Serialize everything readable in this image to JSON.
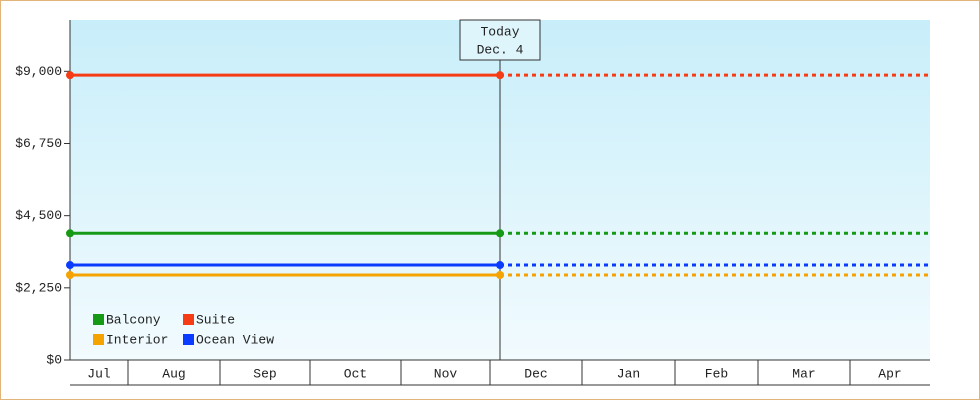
{
  "chart_data": {
    "type": "line",
    "categories": [
      "Jul",
      "Aug",
      "Sep",
      "Oct",
      "Nov",
      "Dec",
      "Jan",
      "Feb",
      "Mar",
      "Apr"
    ],
    "ylim": [
      0,
      10600
    ],
    "yticks": [
      {
        "value": 0,
        "label": "$0"
      },
      {
        "value": 2250,
        "label": "$2,250"
      },
      {
        "value": 4500,
        "label": "$4,500"
      },
      {
        "value": 6750,
        "label": "$6,750"
      },
      {
        "value": 9000,
        "label": "$9,000"
      }
    ],
    "annotation": {
      "title": "Today",
      "date": "Dec. 4"
    },
    "series": [
      {
        "name": "Balcony",
        "color": "#169a16",
        "value": 3950
      },
      {
        "name": "Suite",
        "color": "#f53c14",
        "value": 8880
      },
      {
        "name": "Interior",
        "color": "#f5a300",
        "value": 2650
      },
      {
        "name": "Ocean View",
        "color": "#0a3cff",
        "value": 2960
      }
    ]
  }
}
